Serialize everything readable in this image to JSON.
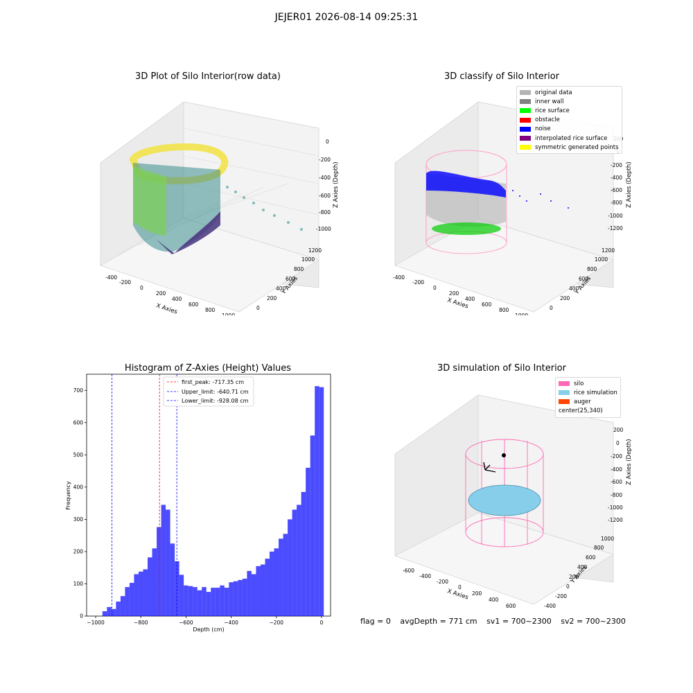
{
  "figure": {
    "suptitle": "JEJER01 2026-08-14 09:25:31"
  },
  "panels": {
    "raw": {
      "title": "3D Plot of Silo Interior(row data)",
      "xlabel": "X Axies",
      "ylabel": "Y Axies",
      "zlabel": "Z Axies (Depth)",
      "x_ticks": [
        "-400",
        "-200",
        "0",
        "200",
        "400",
        "600",
        "800",
        "1000"
      ],
      "y_ticks": [
        "0",
        "200",
        "400",
        "600",
        "800",
        "1000",
        "1200"
      ],
      "z_ticks": [
        "0",
        "-200",
        "-400",
        "-600",
        "-800",
        "-1000"
      ]
    },
    "classify": {
      "title": "3D classify of Silo Interior",
      "xlabel": "X Axies",
      "ylabel": "Y Axies",
      "zlabel": "Z Axies (Depth)",
      "x_ticks": [
        "-400",
        "-200",
        "0",
        "200",
        "400",
        "600",
        "800",
        "1000"
      ],
      "y_ticks": [
        "0",
        "200",
        "400",
        "600",
        "800",
        "1000",
        "1200"
      ],
      "z_ticks": [
        "200",
        "0",
        "-200",
        "-400",
        "-600",
        "-800",
        "-1000",
        "-1200"
      ],
      "legend": [
        {
          "label": "original data",
          "color": "#b3b3b3"
        },
        {
          "label": "inner wall",
          "color": "#808080"
        },
        {
          "label": "rice surface",
          "color": "#00ff00"
        },
        {
          "label": "obstacle",
          "color": "#ff0000"
        },
        {
          "label": "noise",
          "color": "#0000ff"
        },
        {
          "label": "interpolated rice surface",
          "color": "#800080"
        },
        {
          "label": "symmetric generated points",
          "color": "#ffff00"
        }
      ]
    },
    "simulation": {
      "title": "3D simulation of Silo Interior",
      "xlabel": "X Axies",
      "ylabel": "Y Axies",
      "zlabel": "Z Axies (Depth)",
      "x_ticks": [
        "-600",
        "-400",
        "-200",
        "0",
        "200",
        "400",
        "600"
      ],
      "y_ticks": [
        "-400",
        "-200",
        "0",
        "200",
        "400",
        "600",
        "800",
        "1000"
      ],
      "z_ticks": [
        "200",
        "0",
        "-200",
        "-400",
        "-600",
        "-800",
        "-1000",
        "-1200"
      ],
      "legend": [
        {
          "label": "silo",
          "color": "#ff69b4"
        },
        {
          "label": "rice simulation",
          "color": "#87ceeb"
        },
        {
          "label": "auger",
          "color": "#ff4500"
        },
        {
          "label": "center(25,340)",
          "color": ""
        }
      ]
    }
  },
  "chart_data": [
    {
      "type": "bar",
      "title": "Histogram of Z-Axies (Height) Values",
      "xlabel": "Depth (cm)",
      "ylabel": "Frequency",
      "xlim": [
        -1040,
        40
      ],
      "ylim": [
        0,
        750
      ],
      "x_ticks": [
        -1000,
        -800,
        -600,
        -400,
        -200,
        0
      ],
      "y_ticks": [
        0,
        100,
        200,
        300,
        400,
        500,
        600,
        700
      ],
      "bar_color": "#0000ff",
      "bin_edges": [
        -960,
        -940,
        -920,
        -900,
        -880,
        -860,
        -840,
        -820,
        -800,
        -780,
        -760,
        -740,
        -720,
        -700,
        -680,
        -660,
        -640,
        -620,
        -600,
        -580,
        -560,
        -540,
        -520,
        -500,
        -480,
        -460,
        -440,
        -420,
        -400,
        -380,
        -360,
        -340,
        -320,
        -300,
        -280,
        -260,
        -240,
        -220,
        -200,
        -180,
        -160,
        -140,
        -120,
        -100,
        -80,
        -60,
        -40,
        -20,
        0
      ],
      "values": [
        15,
        28,
        22,
        45,
        62,
        90,
        103,
        130,
        138,
        145,
        182,
        210,
        276,
        345,
        330,
        225,
        170,
        128,
        95,
        93,
        90,
        80,
        90,
        75,
        88,
        88,
        95,
        88,
        105,
        108,
        112,
        116,
        140,
        130,
        155,
        160,
        178,
        200,
        210,
        240,
        255,
        300,
        330,
        345,
        385,
        460,
        560,
        713,
        710
      ],
      "vlines": [
        {
          "x": -717.35,
          "color": "#ff0000",
          "label": "first_peak: -717.35 cm"
        },
        {
          "x": -640.71,
          "color": "#0000ff",
          "label": "Upper_limit: -640.71 cm"
        },
        {
          "x": -928.08,
          "color": "#0000ff",
          "label": "Lower_limit: -928.08 cm"
        }
      ]
    }
  ],
  "status": {
    "flag": "flag = 0",
    "avg_depth": "avgDepth = 771 cm",
    "sv1": "sv1 = 700~2300",
    "sv2": "sv2 = 700~2300"
  }
}
